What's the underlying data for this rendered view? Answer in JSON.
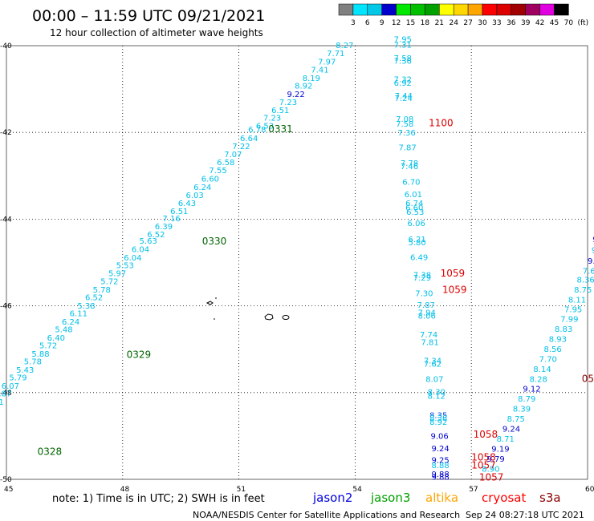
{
  "header": {
    "title": "00:00 – 11:59 UTC 09/21/2021",
    "subtitle": "12 hour collection of altimeter wave heights"
  },
  "scale": {
    "labels": [
      "3",
      "6",
      "9",
      "12",
      "15",
      "18",
      "21",
      "24",
      "27",
      "30",
      "33",
      "36",
      "39",
      "42",
      "45",
      "70",
      "(ft)"
    ],
    "colors": [
      "#808080",
      "#00e5ff",
      "#00c8e6",
      "#0000cd",
      "#00e800",
      "#00c000",
      "#00a000",
      "#ffff00",
      "#ffd700",
      "#ffa500",
      "#ff0000",
      "#dd0000",
      "#a00000",
      "#a00060",
      "#e000e0",
      "#000000"
    ]
  },
  "axes": {
    "y_labels": [
      "-40",
      "-42",
      "-44",
      "-46",
      "-48",
      "-50"
    ],
    "x_labels": [
      "45",
      "48",
      "51",
      "54",
      "57",
      "60"
    ],
    "lat_range": [
      -50,
      -40
    ],
    "lon_range": [
      45,
      60
    ]
  },
  "footer": {
    "note": "note:  1) Time is in UTC;  2) SWH is in feet",
    "credit": "NOAA/NESDIS Center for Satellite Applications and Research",
    "timestamp": "Sep 24 08:27:18 UTC 2021",
    "legend": [
      {
        "name": "jason2",
        "color": "#0000dd"
      },
      {
        "name": "jason3",
        "color": "#00a000"
      },
      {
        "name": "altika",
        "color": "#ffa500"
      },
      {
        "name": "cryosat",
        "color": "#ff0000"
      },
      {
        "name": "s3a",
        "color": "#8b0000"
      }
    ]
  },
  "tracks": [
    {
      "satellite": "jason3",
      "time_labels": [
        {
          "label": "0331",
          "color": "#006400",
          "lon": 51.76,
          "lat": -42.0
        },
        {
          "label": "0330",
          "color": "#006400",
          "lon": 50.05,
          "lat": -44.58
        },
        {
          "label": "0329",
          "color": "#006400",
          "lon": 48.1,
          "lat": -47.2
        },
        {
          "label": "0328",
          "color": "#006400",
          "lon": 45.8,
          "lat": -49.44
        }
      ],
      "points": [
        {
          "swh": "8.27",
          "lon": 53.5,
          "lat": -40.06,
          "color": "#00bfe8"
        },
        {
          "swh": "7.71",
          "lon": 53.27,
          "lat": -40.24,
          "color": "#00bfe8"
        },
        {
          "swh": "7.97",
          "lon": 53.04,
          "lat": -40.43,
          "color": "#00bfe8"
        },
        {
          "swh": "7.41",
          "lon": 52.86,
          "lat": -40.62,
          "color": "#00bfe8"
        },
        {
          "swh": "8.19",
          "lon": 52.64,
          "lat": -40.81,
          "color": "#00bfe8"
        },
        {
          "swh": "8.92",
          "lon": 52.44,
          "lat": -40.99,
          "color": "#00bfe8"
        },
        {
          "swh": "9.22",
          "lon": 52.24,
          "lat": -41.18,
          "color": "#0000cd"
        },
        {
          "swh": "7.23",
          "lon": 52.04,
          "lat": -41.37,
          "color": "#00bfe8"
        },
        {
          "swh": "6.51",
          "lon": 51.84,
          "lat": -41.55,
          "color": "#00bfe8"
        },
        {
          "swh": "7.23",
          "lon": 51.63,
          "lat": -41.73,
          "color": "#00bfe8"
        },
        {
          "swh": "6.53",
          "lon": 51.44,
          "lat": -41.91,
          "color": "#00bfe8"
        },
        {
          "swh": "6.78",
          "lon": 51.24,
          "lat": -42.0,
          "color": "#00bfe8"
        },
        {
          "swh": "6.64",
          "lon": 51.03,
          "lat": -42.2,
          "color": "#00bfe8"
        },
        {
          "swh": "7.22",
          "lon": 50.83,
          "lat": -42.38,
          "color": "#00bfe8"
        },
        {
          "swh": "7.07",
          "lon": 50.62,
          "lat": -42.57,
          "color": "#00bfe8"
        },
        {
          "swh": "6.58",
          "lon": 50.43,
          "lat": -42.75,
          "color": "#00bfe8"
        },
        {
          "swh": "7.55",
          "lon": 50.23,
          "lat": -42.94,
          "color": "#00bfe8"
        },
        {
          "swh": "6.60",
          "lon": 50.03,
          "lat": -43.13,
          "color": "#00bfe8"
        },
        {
          "swh": "6.24",
          "lon": 49.83,
          "lat": -43.33,
          "color": "#00bfe8"
        },
        {
          "swh": "6.03",
          "lon": 49.63,
          "lat": -43.51,
          "color": "#00bfe8"
        },
        {
          "swh": "6.43",
          "lon": 49.43,
          "lat": -43.7,
          "color": "#00bfe8"
        },
        {
          "swh": "6.51",
          "lon": 49.23,
          "lat": -43.88,
          "color": "#00bfe8"
        },
        {
          "swh": "7.16",
          "lon": 49.03,
          "lat": -44.05,
          "color": "#00bfe8"
        },
        {
          "swh": "6.39",
          "lon": 48.83,
          "lat": -44.23,
          "color": "#00bfe8"
        },
        {
          "swh": "6.52",
          "lon": 48.63,
          "lat": -44.42,
          "color": "#00bfe8"
        },
        {
          "swh": "5.63",
          "lon": 48.43,
          "lat": -44.57,
          "color": "#00bfe8"
        },
        {
          "swh": "6.04",
          "lon": 48.23,
          "lat": -44.76,
          "color": "#00bfe8"
        },
        {
          "swh": "6.04",
          "lon": 48.03,
          "lat": -44.95,
          "color": "#00bfe8"
        },
        {
          "swh": "5.53",
          "lon": 47.83,
          "lat": -45.13,
          "color": "#00bfe8"
        },
        {
          "swh": "5.97",
          "lon": 47.63,
          "lat": -45.31,
          "color": "#00bfe8"
        },
        {
          "swh": "5.72",
          "lon": 47.43,
          "lat": -45.5,
          "color": "#00bfe8"
        },
        {
          "swh": "5.78",
          "lon": 47.23,
          "lat": -45.69,
          "color": "#00bfe8"
        },
        {
          "swh": "6.52",
          "lon": 47.03,
          "lat": -45.87,
          "color": "#00bfe8"
        },
        {
          "swh": "5.38",
          "lon": 46.83,
          "lat": -46.06,
          "color": "#00bfe8"
        },
        {
          "swh": "6.11",
          "lon": 46.63,
          "lat": -46.24,
          "color": "#00bfe8"
        },
        {
          "swh": "6.24",
          "lon": 46.43,
          "lat": -46.43,
          "color": "#00bfe8"
        },
        {
          "swh": "5.48",
          "lon": 46.25,
          "lat": -46.61,
          "color": "#00bfe8"
        },
        {
          "swh": "6.40",
          "lon": 46.05,
          "lat": -46.8,
          "color": "#00bfe8"
        },
        {
          "swh": "5.72",
          "lon": 45.85,
          "lat": -46.98,
          "color": "#00bfe8"
        },
        {
          "swh": "5.88",
          "lon": 45.65,
          "lat": -47.17,
          "color": "#00bfe8"
        },
        {
          "swh": "5.78",
          "lon": 45.45,
          "lat": -47.35,
          "color": "#00bfe8"
        },
        {
          "swh": "5.43",
          "lon": 45.25,
          "lat": -47.54,
          "color": "#00bfe8"
        },
        {
          "swh": "5.79",
          "lon": 45.07,
          "lat": -47.72,
          "color": "#00bfe8"
        },
        {
          "swh": "6.07",
          "lon": 44.87,
          "lat": -47.91,
          "color": "#00bfe8"
        },
        {
          "swh": "5.87",
          "lon": 44.67,
          "lat": -48.09,
          "color": "#00bfe8"
        },
        {
          "swh": "6.51",
          "lon": 44.47,
          "lat": -48.28,
          "color": "#00bfe8"
        },
        {
          "swh": "6.13",
          "lon": 44.27,
          "lat": -48.46,
          "color": "#00bfe8"
        },
        {
          "swh": "6.28",
          "lon": 44.07,
          "lat": -48.65,
          "color": "#00bfe8"
        },
        {
          "swh": "5.98",
          "lon": 43.87,
          "lat": -48.83,
          "color": "#00bfe8"
        },
        {
          "swh": "6.45",
          "lon": 43.67,
          "lat": -49.02,
          "color": "#00bfe8"
        },
        {
          "swh": "6.79",
          "lon": 43.47,
          "lat": -49.2,
          "color": "#00bfe8"
        },
        {
          "swh": "7.12",
          "lon": 43.27,
          "lat": -49.39,
          "color": "#00bfe8"
        },
        {
          "swh": "6.64",
          "lon": 43.07,
          "lat": -49.57,
          "color": "#00bfe8"
        }
      ]
    },
    {
      "satellite": "cryosat-track",
      "time_labels": [
        {
          "label": "1100",
          "color": "#dd0000",
          "lon": 55.9,
          "lat": -41.86
        },
        {
          "label": "1059",
          "color": "#dd0000",
          "lon": 56.2,
          "lat": -45.32
        },
        {
          "label": "1059",
          "color": "#dd0000",
          "lon": 56.25,
          "lat": -45.7
        },
        {
          "label": "1058",
          "color": "#dd0000",
          "lon": 57.05,
          "lat": -49.04
        },
        {
          "label": "1058",
          "color": "#dd0000",
          "lon": 57.0,
          "lat": -49.57
        },
        {
          "label": "1057",
          "color": "#dd0000",
          "lon": 57.0,
          "lat": -49.75
        },
        {
          "label": "1057",
          "color": "#dd0000",
          "lon": 57.2,
          "lat": -50.03
        }
      ],
      "points": [
        {
          "swh": "7.95",
          "lon": 55.0,
          "lat": -39.92,
          "color": "#00bfe8"
        },
        {
          "swh": "7.31",
          "lon": 55.0,
          "lat": -40.05,
          "color": "#00bfe8"
        },
        {
          "swh": "7.58",
          "lon": 55.0,
          "lat": -40.35,
          "color": "#00bfe8"
        },
        {
          "swh": "7.36",
          "lon": 55.0,
          "lat": -40.42,
          "color": "#00bfe8"
        },
        {
          "swh": "7.32",
          "lon": 55.0,
          "lat": -40.84,
          "color": "#00bfe8"
        },
        {
          "swh": "6.92",
          "lon": 55.0,
          "lat": -40.92,
          "color": "#00bfe8"
        },
        {
          "swh": "7.44",
          "lon": 55.02,
          "lat": -41.22,
          "color": "#00bfe8"
        },
        {
          "swh": "7.24",
          "lon": 55.02,
          "lat": -41.28,
          "color": "#00bfe8"
        },
        {
          "swh": "7.08",
          "lon": 55.05,
          "lat": -41.76,
          "color": "#00bfe8"
        },
        {
          "swh": "7.58",
          "lon": 55.05,
          "lat": -41.87,
          "color": "#00bfe8"
        },
        {
          "swh": "7.36",
          "lon": 55.1,
          "lat": -42.07,
          "color": "#00bfe8"
        },
        {
          "swh": "7.87",
          "lon": 55.12,
          "lat": -42.41,
          "color": "#00bfe8"
        },
        {
          "swh": "7.78",
          "lon": 55.17,
          "lat": -42.77,
          "color": "#00bfe8"
        },
        {
          "swh": "7.46",
          "lon": 55.17,
          "lat": -42.85,
          "color": "#00bfe8"
        },
        {
          "swh": "6.70",
          "lon": 55.22,
          "lat": -43.21,
          "color": "#00bfe8"
        },
        {
          "swh": "6.01",
          "lon": 55.27,
          "lat": -43.49,
          "color": "#00bfe8"
        },
        {
          "swh": "6.74",
          "lon": 55.3,
          "lat": -43.7,
          "color": "#00bfe8"
        },
        {
          "swh": "6.60",
          "lon": 55.3,
          "lat": -43.8,
          "color": "#00bfe8"
        },
        {
          "swh": "6.53",
          "lon": 55.32,
          "lat": -43.9,
          "color": "#00bfe8"
        },
        {
          "swh": "6.06",
          "lon": 55.35,
          "lat": -44.16,
          "color": "#00bfe8"
        },
        {
          "swh": "6.21",
          "lon": 55.37,
          "lat": -44.53,
          "color": "#00bfe8"
        },
        {
          "swh": "5.80",
          "lon": 55.37,
          "lat": -44.6,
          "color": "#00bfe8"
        },
        {
          "swh": "6.49",
          "lon": 55.42,
          "lat": -44.94,
          "color": "#00bfe8"
        },
        {
          "swh": "7.38",
          "lon": 55.5,
          "lat": -45.35,
          "color": "#00bfe8"
        },
        {
          "swh": "7.29",
          "lon": 55.5,
          "lat": -45.42,
          "color": "#00bfe8"
        },
        {
          "swh": "7.30",
          "lon": 55.55,
          "lat": -45.78,
          "color": "#00bfe8"
        },
        {
          "swh": "7.87",
          "lon": 55.6,
          "lat": -46.04,
          "color": "#00bfe8"
        },
        {
          "swh": "7.94",
          "lon": 55.62,
          "lat": -46.22,
          "color": "#00bfe8"
        },
        {
          "swh": "8.06",
          "lon": 55.62,
          "lat": -46.29,
          "color": "#00bfe8"
        },
        {
          "swh": "7.74",
          "lon": 55.67,
          "lat": -46.73,
          "color": "#00bfe8"
        },
        {
          "swh": "7.81",
          "lon": 55.7,
          "lat": -46.9,
          "color": "#00bfe8"
        },
        {
          "swh": "7.34",
          "lon": 55.77,
          "lat": -47.33,
          "color": "#00bfe8"
        },
        {
          "swh": "7.62",
          "lon": 55.77,
          "lat": -47.4,
          "color": "#00bfe8"
        },
        {
          "swh": "8.07",
          "lon": 55.82,
          "lat": -47.75,
          "color": "#00bfe8"
        },
        {
          "swh": "8.30",
          "lon": 55.87,
          "lat": -48.05,
          "color": "#00bfe8"
        },
        {
          "swh": "8.12",
          "lon": 55.87,
          "lat": -48.14,
          "color": "#00bfe8"
        },
        {
          "swh": "8.35",
          "lon": 55.92,
          "lat": -48.59,
          "color": "#1050e0"
        },
        {
          "swh": "8.38",
          "lon": 55.92,
          "lat": -48.65,
          "color": "#00bfe8"
        },
        {
          "swh": "8.92",
          "lon": 55.92,
          "lat": -48.74,
          "color": "#00bfe8"
        },
        {
          "swh": "9.06",
          "lon": 55.95,
          "lat": -49.07,
          "color": "#0000cd"
        },
        {
          "swh": "9.24",
          "lon": 55.97,
          "lat": -49.35,
          "color": "#0000cd"
        },
        {
          "swh": "9.25",
          "lon": 55.97,
          "lat": -49.62,
          "color": "#0000cd"
        },
        {
          "swh": "8.88",
          "lon": 55.97,
          "lat": -49.74,
          "color": "#00bfe8"
        },
        {
          "swh": "9.88",
          "lon": 55.97,
          "lat": -49.94,
          "color": "#0000cd"
        },
        {
          "swh": "9.88",
          "lon": 55.97,
          "lat": -50.01,
          "color": "#0000cd"
        }
      ]
    },
    {
      "satellite": "s3a-track",
      "time_labels": [
        {
          "label": "0527",
          "color": "#8b0000",
          "lon": 59.85,
          "lat": -47.75
        }
      ],
      "points": [
        {
          "swh": "9",
          "lon": 60.13,
          "lat": -44.53,
          "color": "#0000cd"
        },
        {
          "swh": "9",
          "lon": 60.1,
          "lat": -44.78,
          "color": "#00bfe8"
        },
        {
          "swh": "9.",
          "lon": 60.0,
          "lat": -45.03,
          "color": "#0000cd"
        },
        {
          "swh": "7.6",
          "lon": 59.87,
          "lat": -45.26,
          "color": "#00bfe8"
        },
        {
          "swh": "8.36",
          "lon": 59.72,
          "lat": -45.46,
          "color": "#00bfe8"
        },
        {
          "swh": "8.75",
          "lon": 59.65,
          "lat": -45.69,
          "color": "#00bfe8"
        },
        {
          "swh": "8.11",
          "lon": 59.5,
          "lat": -45.92,
          "color": "#00bfe8"
        },
        {
          "swh": "7.95",
          "lon": 59.4,
          "lat": -46.15,
          "color": "#00bfe8"
        },
        {
          "swh": "7.99",
          "lon": 59.3,
          "lat": -46.37,
          "color": "#00bfe8"
        },
        {
          "swh": "8.83",
          "lon": 59.15,
          "lat": -46.6,
          "color": "#00bfe8"
        },
        {
          "swh": "8.93",
          "lon": 59.0,
          "lat": -46.83,
          "color": "#00bfe8"
        },
        {
          "swh": "8.56",
          "lon": 58.87,
          "lat": -47.06,
          "color": "#00bfe8"
        },
        {
          "swh": "7.70",
          "lon": 58.75,
          "lat": -47.29,
          "color": "#00bfe8"
        },
        {
          "swh": "8.14",
          "lon": 58.6,
          "lat": -47.52,
          "color": "#00bfe8"
        },
        {
          "swh": "8.28",
          "lon": 58.5,
          "lat": -47.75,
          "color": "#00bfe8"
        },
        {
          "swh": "9.12",
          "lon": 58.33,
          "lat": -47.98,
          "color": "#0000cd"
        },
        {
          "swh": "8.79",
          "lon": 58.2,
          "lat": -48.21,
          "color": "#00bfe8"
        },
        {
          "swh": "8.39",
          "lon": 58.07,
          "lat": -48.44,
          "color": "#00bfe8"
        },
        {
          "swh": "8.75",
          "lon": 57.92,
          "lat": -48.67,
          "color": "#00bfe8"
        },
        {
          "swh": "9.24",
          "lon": 57.8,
          "lat": -48.9,
          "color": "#0000cd"
        },
        {
          "swh": "8.71",
          "lon": 57.65,
          "lat": -49.13,
          "color": "#00bfe8"
        },
        {
          "swh": "9.19",
          "lon": 57.52,
          "lat": -49.36,
          "color": "#0000cd"
        },
        {
          "swh": "9.79",
          "lon": 57.4,
          "lat": -49.59,
          "color": "#0000cd"
        },
        {
          "swh": "8.90",
          "lon": 57.27,
          "lat": -49.82,
          "color": "#00bfe8"
        }
      ]
    }
  ]
}
